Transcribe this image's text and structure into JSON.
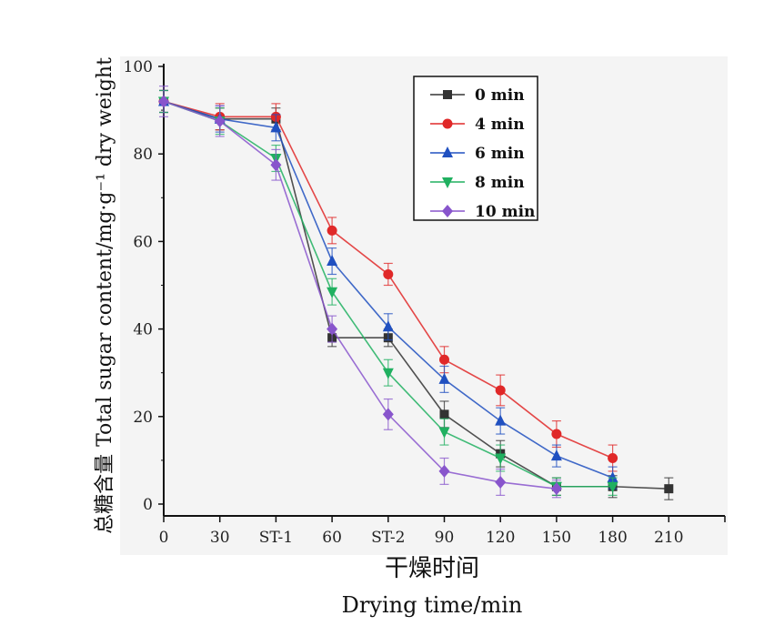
{
  "chart_data": {
    "type": "line",
    "ylabel_cn": "总糖含量",
    "ylabel_en": "Total sugar content/mg·g⁻¹ dry weight",
    "xlabel_cn": "干燥时间",
    "xlabel_en": "Drying time/min",
    "categories": [
      "0",
      "30",
      "ST-1",
      "60",
      "ST-2",
      "90",
      "120",
      "150",
      "180",
      "210"
    ],
    "ylim": [
      -3,
      102
    ],
    "yticks": [
      0,
      20,
      40,
      60,
      80,
      100
    ],
    "grid": false,
    "legend_position": "top-right",
    "series": [
      {
        "name": "0 min",
        "color": "#333333",
        "marker": "square",
        "values": [
          92,
          88,
          88,
          38,
          38,
          20.5,
          11.5,
          4,
          4,
          3.5
        ],
        "errors": [
          2.5,
          2.5,
          2.5,
          2.0,
          2.0,
          3.0,
          3.0,
          2.0,
          2.5,
          2.5
        ]
      },
      {
        "name": "4 min",
        "color": "#e02828",
        "marker": "circle",
        "values": [
          92,
          88.5,
          88.5,
          62.5,
          52.5,
          33,
          26,
          16,
          10.5,
          null
        ],
        "errors": [
          2.5,
          3.0,
          3.0,
          3.0,
          2.5,
          3.0,
          3.5,
          3.0,
          3.0,
          null
        ]
      },
      {
        "name": "6 min",
        "color": "#2050c0",
        "marker": "triangle-up",
        "values": [
          92,
          88,
          86,
          55.5,
          40.5,
          28.5,
          19,
          11,
          6,
          null
        ],
        "errors": [
          2.5,
          3.0,
          3.0,
          3.0,
          3.0,
          3.0,
          3.0,
          2.5,
          2.5,
          null
        ]
      },
      {
        "name": "8 min",
        "color": "#20b060",
        "marker": "triangle-down",
        "values": [
          92,
          87.5,
          79,
          48.5,
          30,
          16.5,
          10.5,
          4,
          4,
          null
        ],
        "errors": [
          2.5,
          3.0,
          3.0,
          3.0,
          3.0,
          3.0,
          3.0,
          2.0,
          2.0,
          null
        ]
      },
      {
        "name": "10 min",
        "color": "#8855cc",
        "marker": "diamond",
        "values": [
          92,
          87.5,
          77.5,
          40,
          20.5,
          7.5,
          5,
          3.5,
          null,
          null
        ],
        "errors": [
          3.5,
          3.5,
          3.5,
          3.0,
          3.5,
          3.0,
          3.0,
          2.0,
          null,
          null
        ]
      }
    ]
  }
}
